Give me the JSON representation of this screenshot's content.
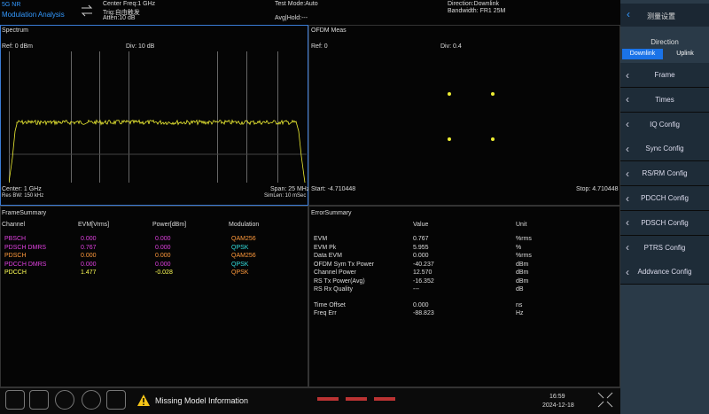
{
  "header": {
    "app": "5G NR",
    "mode": "Modulation Analysis",
    "center_freq": "Center Freq:1 GHz",
    "trigger": "Trig:自由触发",
    "atten": "Atten:10 dB",
    "test_mode": "Test Mode:Auto",
    "avg_hold": "Avg|Hold:---",
    "direction": "Direction:Downlink",
    "bandwidth": "Bandwidth: FR1 25M"
  },
  "spectrum": {
    "title": "Spectrum",
    "ref": "Ref: 0 dBm",
    "div": "Div: 10 dB",
    "center": "Center: 1 GHz",
    "res_bw": "Res BW: 150 kHz",
    "span": "Span: 25 MHz",
    "sim_len": "SimLen: 10 mSec"
  },
  "ofdm": {
    "title": "OFDM Meas",
    "ref": "Ref: 0",
    "div": "Div: 0.4",
    "start": "Start: -4.710448",
    "stop": "Stop: 4.710448"
  },
  "frame_summary": {
    "title": "FrameSummary",
    "headers": [
      "Channel",
      "EVM[Vrms]",
      "Power[dBm]",
      "Modulation"
    ],
    "rows": [
      [
        "PBSCH",
        "0.000",
        "0.000",
        "QAM256"
      ],
      [
        "PDSCH DMRS",
        "0.767",
        "0.000",
        "QPSK"
      ],
      [
        "PDSCH",
        "0.000",
        "0.000",
        "QAM256"
      ],
      [
        "PDCCH DMRS",
        "0.000",
        "0.000",
        "QPSK"
      ],
      [
        "PDCCH",
        "1.477",
        "-0.028",
        "QPSK"
      ]
    ]
  },
  "error_summary": {
    "title": "ErrorSummary",
    "headers": [
      "Value",
      "Unit"
    ],
    "rows": [
      [
        "EVM",
        "0.767",
        "%rms"
      ],
      [
        "EVM Pk",
        "5.955",
        "%"
      ],
      [
        "Data EVM",
        "0.000",
        "%rms"
      ],
      [
        "OFDM Sym Tx Power",
        "-40.237",
        "dBm"
      ],
      [
        "Channel Power",
        "12.570",
        "dBm"
      ],
      [
        "RS Tx Power(Avg)",
        "-16.352",
        "dBm"
      ],
      [
        "RS Rx Quality",
        "---",
        "dB"
      ],
      [
        "Time Offset",
        "0.000",
        "ns"
      ],
      [
        "Freq Err",
        "-88.823",
        "Hz"
      ]
    ]
  },
  "side_panel": {
    "title": "测量设置",
    "direction_label": "Direction",
    "direction_options": [
      "Downlink",
      "Uplink"
    ],
    "menu": [
      "Frame",
      "Times",
      "IQ Config",
      "Sync Config",
      "RS/RM Config",
      "PDCCH Config",
      "PDSCH Config",
      "PTRS Config",
      "Addvance Config"
    ]
  },
  "status_bar": {
    "warning": "Missing Model Information",
    "time": "16:59",
    "date": "2024-12-18"
  }
}
